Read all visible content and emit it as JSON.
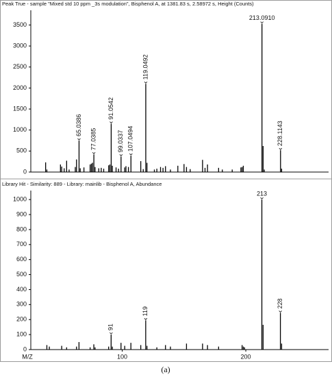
{
  "chart_data": [
    {
      "type": "stem",
      "title": "Peak True - sample \"Mixed std 10 ppm _3s modulation\", Bisphenol A, at 1381.83 s, 2.58972 s, Height (Counts)",
      "x": [
        38,
        39,
        50,
        51,
        53,
        55,
        57,
        62,
        63,
        65.0386,
        66,
        69,
        74,
        75,
        76,
        77.0385,
        78,
        81,
        83,
        85,
        89,
        90,
        91.0542,
        92,
        95,
        97,
        99.0337,
        102,
        103,
        105,
        107.0494,
        115,
        117,
        119.0492,
        120,
        126,
        128,
        131,
        133,
        135,
        139,
        145,
        150,
        152,
        155,
        165,
        167,
        169,
        178,
        181,
        189,
        196,
        197,
        198,
        213.091,
        214,
        215,
        228.1143,
        229
      ],
      "values": [
        230,
        60,
        180,
        130,
        90,
        270,
        60,
        120,
        300,
        750,
        90,
        110,
        180,
        200,
        220,
        420,
        120,
        90,
        100,
        80,
        160,
        180,
        1150,
        150,
        110,
        80,
        370,
        110,
        140,
        120,
        390,
        260,
        70,
        2100,
        220,
        60,
        80,
        120,
        100,
        140,
        60,
        150,
        190,
        120,
        70,
        290,
        100,
        180,
        100,
        60,
        60,
        110,
        120,
        150,
        3530,
        620,
        60,
        520,
        80
      ],
      "annotations": [
        {
          "x": 65.0386,
          "label": "65.0386"
        },
        {
          "x": 77.0385,
          "label": "77.0385"
        },
        {
          "x": 91.0542,
          "label": "91.0542"
        },
        {
          "x": 99.0337,
          "label": "99.0337"
        },
        {
          "x": 107.0494,
          "label": "107.0494"
        },
        {
          "x": 119.0492,
          "label": "119.0492"
        },
        {
          "x": 213.091,
          "label": "213.0910"
        },
        {
          "x": 228.1143,
          "label": "228.1143"
        }
      ],
      "color": "#000000",
      "xlim": [
        26,
        267
      ],
      "ylim": [
        0,
        3850
      ],
      "yticks": [
        0,
        500,
        1000,
        1500,
        2000,
        2500,
        3000,
        3500
      ]
    },
    {
      "type": "stem",
      "title": "Library Hit - Similarity: 889 - Library: mainlib - Bisphenol A, Abundance",
      "x": [
        39,
        41,
        51,
        55,
        63,
        65,
        74,
        77,
        78,
        89,
        91,
        92,
        99,
        102,
        107,
        115,
        119,
        120,
        128,
        135,
        139,
        152,
        165,
        169,
        178,
        197,
        198,
        199,
        213,
        214,
        228,
        229
      ],
      "values": [
        30,
        20,
        25,
        15,
        20,
        50,
        15,
        35,
        15,
        20,
        100,
        20,
        45,
        25,
        45,
        30,
        195,
        25,
        15,
        30,
        20,
        40,
        40,
        30,
        20,
        30,
        20,
        15,
        1000,
        165,
        245,
        40
      ],
      "annotations": [
        {
          "x": 91,
          "label": "91"
        },
        {
          "x": 119,
          "label": "119"
        },
        {
          "x": 213,
          "label": "213"
        },
        {
          "x": 228,
          "label": "228"
        }
      ],
      "color": "#000000",
      "xlabel": "M/Z",
      "xlim": [
        26,
        267
      ],
      "xticks": [
        100,
        200
      ],
      "ylim": [
        0,
        1060
      ],
      "yticks": [
        0,
        100,
        200,
        300,
        400,
        500,
        600,
        700,
        800,
        900,
        1000
      ]
    }
  ],
  "caption": "(a)"
}
